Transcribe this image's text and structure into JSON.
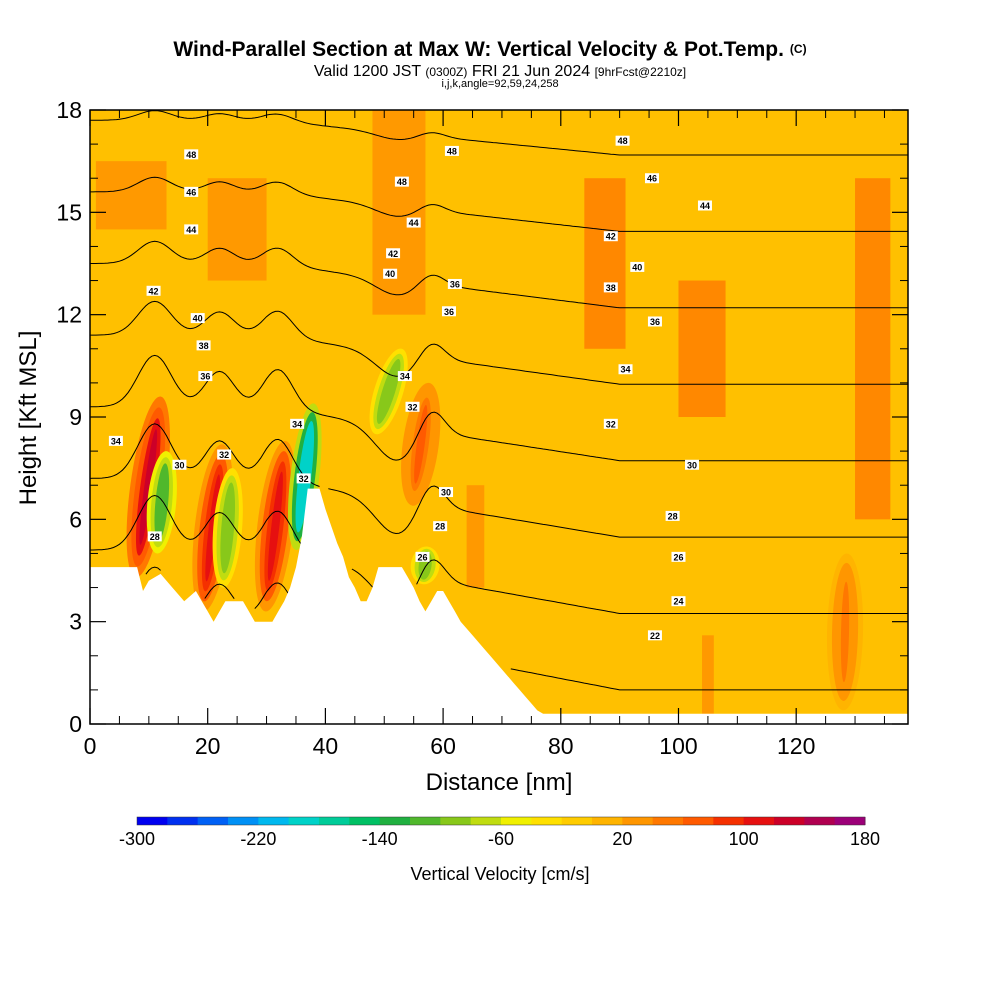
{
  "header": {
    "title": "Wind-Parallel Section at Max W: Vertical Velocity & Pot.Temp.",
    "title_mark": "(C)",
    "valid_prefix": "Valid 1200 JST",
    "valid_utc": "(0300Z)",
    "valid_date": "FRI 21 Jun 2024",
    "forecast": "[9hrFcst@2210z]",
    "grid_info": "i,j,k,angle=92,59,24,258"
  },
  "chart_data": {
    "type": "heatmap",
    "xlabel": "Distance [nm]",
    "ylabel": "Height [Kft MSL]",
    "xlim": [
      0,
      139
    ],
    "ylim": [
      0,
      18
    ],
    "x_ticks": [
      0,
      20,
      40,
      60,
      80,
      100,
      120
    ],
    "y_ticks": [
      0,
      3,
      6,
      9,
      12,
      15,
      18
    ],
    "x_tick_labels": [
      "0",
      "20",
      "40",
      "60",
      "80",
      "100",
      "120"
    ],
    "y_tick_labels": [
      "0",
      "3",
      "6",
      "9",
      "12",
      "15",
      "18"
    ],
    "grid": false,
    "colorbar": {
      "label": "Vertical Velocity [cm/s]",
      "range": [
        -300,
        180
      ],
      "step": 20,
      "tick_values": [
        -300,
        -220,
        -140,
        -60,
        20,
        100,
        180
      ],
      "tick_labels": [
        "-300",
        "-220",
        "-140",
        "-60",
        "20",
        "100",
        "180"
      ],
      "colors": [
        "#0000f0",
        "#0030f0",
        "#0060f5",
        "#0090f5",
        "#00b8ee",
        "#00d2c8",
        "#00cc99",
        "#00c064",
        "#20b040",
        "#50b82c",
        "#88c81a",
        "#c0dc10",
        "#f0f000",
        "#ffe000",
        "#ffcc00",
        "#ffb400",
        "#ff9600",
        "#ff7800",
        "#ff5a00",
        "#f53000",
        "#e61010",
        "#cc0028",
        "#b00050",
        "#9c0078",
        "#800090"
      ]
    },
    "terrain": [
      [
        0,
        4.6
      ],
      [
        8,
        4.6
      ],
      [
        9,
        3.9
      ],
      [
        10,
        4.2
      ],
      [
        12,
        4.4
      ],
      [
        14,
        4.0
      ],
      [
        16,
        3.6
      ],
      [
        18,
        3.9
      ],
      [
        19,
        3.6
      ],
      [
        20,
        3.3
      ],
      [
        21,
        3.0
      ],
      [
        22,
        3.3
      ],
      [
        23,
        3.6
      ],
      [
        26,
        3.6
      ],
      [
        27,
        3.3
      ],
      [
        28,
        3.0
      ],
      [
        31,
        3.0
      ],
      [
        32,
        3.3
      ],
      [
        33,
        3.6
      ],
      [
        34,
        4.0
      ],
      [
        35,
        4.6
      ],
      [
        36,
        5.5
      ],
      [
        37,
        6.9
      ],
      [
        39,
        6.9
      ],
      [
        40,
        6.3
      ],
      [
        41,
        5.8
      ],
      [
        42,
        5.3
      ],
      [
        43,
        4.9
      ],
      [
        44,
        4.3
      ],
      [
        45,
        4.0
      ],
      [
        46,
        3.6
      ],
      [
        47,
        3.6
      ],
      [
        48,
        4.0
      ],
      [
        49,
        4.6
      ],
      [
        53,
        4.6
      ],
      [
        54,
        4.3
      ],
      [
        55,
        4.0
      ],
      [
        56,
        3.6
      ],
      [
        57,
        3.3
      ],
      [
        58,
        3.6
      ],
      [
        59,
        3.9
      ],
      [
        60,
        3.9
      ],
      [
        61,
        3.6
      ],
      [
        62,
        3.3
      ],
      [
        63,
        3.0
      ],
      [
        64,
        2.8
      ],
      [
        65,
        2.6
      ],
      [
        66,
        2.4
      ],
      [
        67,
        2.2
      ],
      [
        68,
        2.0
      ],
      [
        69,
        1.8
      ],
      [
        70,
        1.6
      ],
      [
        71,
        1.4
      ],
      [
        72,
        1.2
      ],
      [
        73,
        1.0
      ],
      [
        74,
        0.8
      ],
      [
        75,
        0.6
      ],
      [
        76,
        0.4
      ],
      [
        77,
        0.3
      ],
      [
        139,
        0.3
      ]
    ],
    "updraft_cores": [
      {
        "x0": 7.8,
        "z0": 4.3,
        "x1": 12.0,
        "z1": 9.6,
        "w": 120
      },
      {
        "x0": 19.2,
        "z0": 3.3,
        "x1": 22.5,
        "z1": 8.2,
        "w": 110
      },
      {
        "x0": 29.8,
        "z0": 3.3,
        "x1": 33.2,
        "z1": 8.3,
        "w": 110
      },
      {
        "x0": 54.8,
        "z0": 6.4,
        "x1": 57.6,
        "z1": 10.0,
        "w": 60
      },
      {
        "x0": 128.0,
        "z0": 0.4,
        "x1": 128.6,
        "z1": 5.0,
        "w": 40
      }
    ],
    "downdraft_cores": [
      {
        "x0": 35.0,
        "z0": 5.1,
        "x1": 38.0,
        "z1": 9.4,
        "w": -200
      },
      {
        "x0": 11.4,
        "z0": 5.0,
        "x1": 13.0,
        "z1": 8.0,
        "w": -110
      },
      {
        "x0": 22.6,
        "z0": 4.0,
        "x1": 24.2,
        "z1": 7.5,
        "w": -100
      },
      {
        "x0": 48.5,
        "z0": 8.5,
        "x1": 53.0,
        "z1": 11.0,
        "w": -90
      },
      {
        "x0": 56.5,
        "z0": 4.1,
        "x1": 57.4,
        "z1": 5.2,
        "w": -90
      }
    ],
    "theta_contours_K": [
      22,
      24,
      26,
      28,
      30,
      32,
      34,
      36,
      38,
      40,
      42,
      44,
      46,
      48
    ],
    "theta_contour_labels": [
      {
        "text": "48",
        "x": 17.2,
        "z": 16.7
      },
      {
        "text": "48",
        "x": 61.5,
        "z": 16.8
      },
      {
        "text": "48",
        "x": 90.5,
        "z": 17.1
      },
      {
        "text": "46",
        "x": 17.2,
        "z": 15.6
      },
      {
        "text": "48",
        "x": 53.0,
        "z": 15.9
      },
      {
        "text": "46",
        "x": 95.5,
        "z": 16.0
      },
      {
        "text": "44",
        "x": 17.2,
        "z": 14.5
      },
      {
        "text": "44",
        "x": 55.0,
        "z": 14.7
      },
      {
        "text": "44",
        "x": 104.5,
        "z": 15.2
      },
      {
        "text": "42",
        "x": 51.5,
        "z": 13.8
      },
      {
        "text": "42",
        "x": 88.5,
        "z": 14.3
      },
      {
        "text": "42",
        "x": 10.8,
        "z": 12.7
      },
      {
        "text": "40",
        "x": 51.0,
        "z": 13.2
      },
      {
        "text": "40",
        "x": 93.0,
        "z": 13.4
      },
      {
        "text": "40",
        "x": 18.3,
        "z": 11.9
      },
      {
        "text": "38",
        "x": 19.3,
        "z": 11.1
      },
      {
        "text": "36",
        "x": 62.0,
        "z": 12.9
      },
      {
        "text": "38",
        "x": 88.5,
        "z": 12.8
      },
      {
        "text": "36",
        "x": 61.0,
        "z": 12.1
      },
      {
        "text": "36",
        "x": 96.0,
        "z": 11.8
      },
      {
        "text": "36",
        "x": 19.6,
        "z": 10.2
      },
      {
        "text": "34",
        "x": 53.5,
        "z": 10.2
      },
      {
        "text": "34",
        "x": 91.0,
        "z": 10.4
      },
      {
        "text": "32",
        "x": 54.8,
        "z": 9.3
      },
      {
        "text": "34",
        "x": 35.2,
        "z": 8.8
      },
      {
        "text": "32",
        "x": 88.5,
        "z": 8.8
      },
      {
        "text": "34",
        "x": 4.4,
        "z": 8.3
      },
      {
        "text": "32",
        "x": 22.8,
        "z": 7.9
      },
      {
        "text": "30",
        "x": 15.2,
        "z": 7.6
      },
      {
        "text": "30",
        "x": 102.3,
        "z": 7.6
      },
      {
        "text": "32",
        "x": 36.3,
        "z": 7.2
      },
      {
        "text": "30",
        "x": 60.5,
        "z": 6.8
      },
      {
        "text": "28",
        "x": 99.0,
        "z": 6.1
      },
      {
        "text": "28",
        "x": 59.5,
        "z": 5.8
      },
      {
        "text": "28",
        "x": 11.0,
        "z": 5.5
      },
      {
        "text": "26",
        "x": 56.5,
        "z": 4.9
      },
      {
        "text": "26",
        "x": 100.0,
        "z": 4.9
      },
      {
        "text": "24",
        "x": 100.0,
        "z": 3.6
      },
      {
        "text": "22",
        "x": 96.0,
        "z": 2.6
      }
    ]
  }
}
